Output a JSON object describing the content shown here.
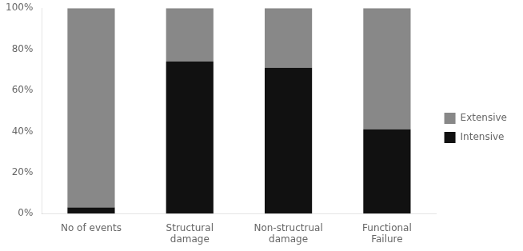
{
  "chart_data": {
    "type": "bar",
    "stacked": true,
    "categories": [
      "No of events",
      "Structural\ndamage",
      "Non-structrual\ndamage",
      "Functional\nFailure"
    ],
    "series": [
      {
        "name": "Intensive",
        "color": "#111111",
        "values": [
          3,
          74,
          71,
          41
        ]
      },
      {
        "name": "Extensive",
        "color": "#888888",
        "values": [
          97,
          26,
          29,
          59
        ]
      }
    ],
    "ylim": [
      0,
      100
    ],
    "yticks": [
      {
        "value": 0,
        "label": "0%"
      },
      {
        "value": 20,
        "label": "20%"
      },
      {
        "value": 40,
        "label": "40%"
      },
      {
        "value": 60,
        "label": "60%"
      },
      {
        "value": 80,
        "label": "80%"
      },
      {
        "value": 100,
        "label": "100%"
      }
    ],
    "grid": false,
    "legend": "right"
  }
}
